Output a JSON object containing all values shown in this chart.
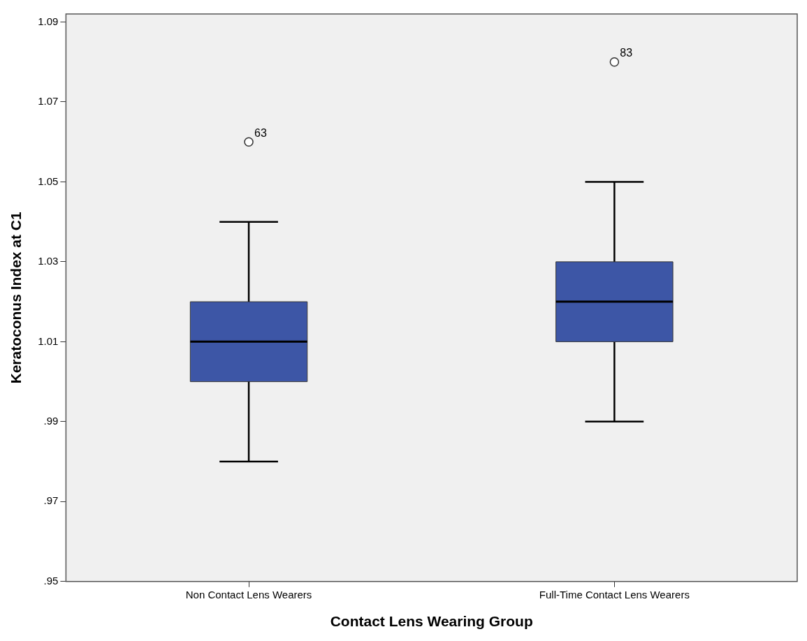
{
  "chart_data": {
    "type": "box",
    "xlabel": "Contact Lens Wearing Group",
    "ylabel": "Keratoconus Index at C1",
    "categories": [
      "Non Contact Lens Wearers",
      "Full-Time Contact Lens Wearers"
    ],
    "color": "#3d56a6",
    "boxes": [
      {
        "low": 0.98,
        "q1": 1.0,
        "median": 1.01,
        "q3": 1.02,
        "high": 1.04,
        "outliers": [
          1.06
        ]
      },
      {
        "low": 0.99,
        "q1": 1.01,
        "median": 1.02,
        "q3": 1.03,
        "high": 1.05,
        "outliers": [
          1.08
        ]
      }
    ],
    "ylim": [
      0.95,
      1.092
    ],
    "yticks": [
      {
        "value": 0.95,
        "label": ".95"
      },
      {
        "value": 0.97,
        "label": ".97"
      },
      {
        "value": 0.99,
        "label": ".99"
      },
      1.01,
      1.03,
      1.05,
      1.07,
      1.09
    ],
    "annotations": [
      "63",
      "83"
    ]
  }
}
